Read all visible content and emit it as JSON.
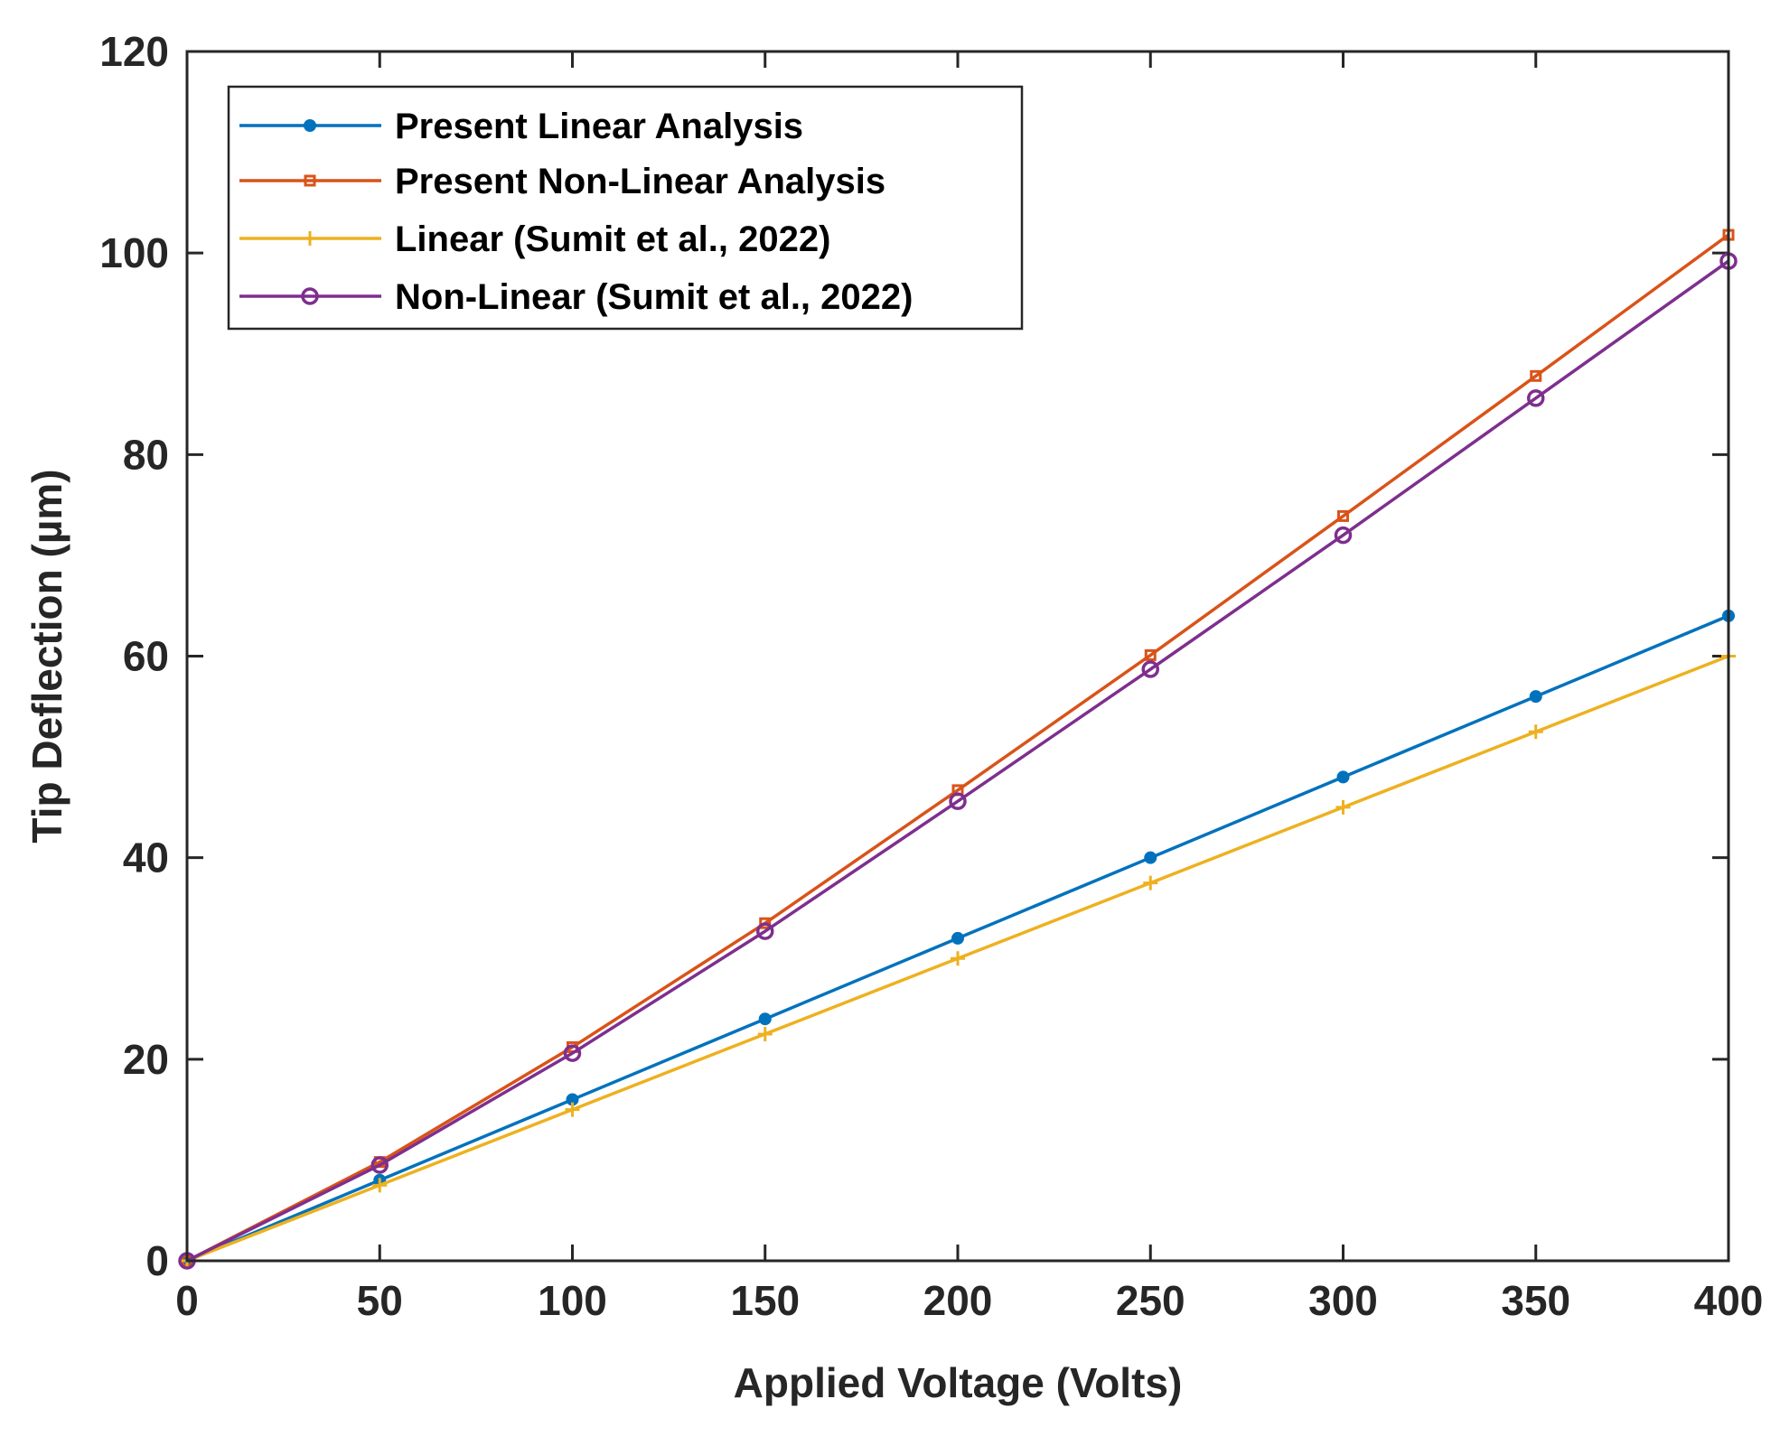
{
  "chart_data": {
    "type": "line",
    "title": "",
    "xlabel": "Applied Voltage (Volts)",
    "ylabel": "Tip Deflection (µm)",
    "xlim": [
      0,
      400
    ],
    "ylim": [
      0,
      120
    ],
    "grid": false,
    "legend_position": "top-left",
    "x_ticks": [
      0,
      50,
      100,
      150,
      200,
      250,
      300,
      350,
      400
    ],
    "y_ticks": [
      0,
      20,
      40,
      60,
      80,
      100,
      120
    ],
    "x": [
      0,
      50,
      100,
      150,
      200,
      250,
      300,
      350,
      400
    ],
    "series": [
      {
        "name": "Present Linear Analysis",
        "color": "#0072BD",
        "marker": "dot",
        "values": [
          0,
          8,
          16,
          24,
          32,
          40,
          48,
          56,
          64
        ]
      },
      {
        "name": "Present Non-Linear Analysis",
        "color": "#D95319",
        "marker": "square",
        "values": [
          0,
          9.8,
          21.2,
          33.5,
          46.7,
          60.1,
          73.9,
          87.8,
          101.8
        ]
      },
      {
        "name": "Linear (Sumit et al., 2022)",
        "color": "#EDB120",
        "marker": "plus",
        "values": [
          0,
          7.5,
          15,
          22.5,
          30,
          37.5,
          45,
          52.5,
          60
        ]
      },
      {
        "name": "Non-Linear (Sumit et al., 2022)",
        "color": "#7E2F8E",
        "marker": "circle",
        "values": [
          0,
          9.5,
          20.6,
          32.7,
          45.6,
          58.7,
          72,
          85.6,
          99.2
        ]
      }
    ]
  }
}
